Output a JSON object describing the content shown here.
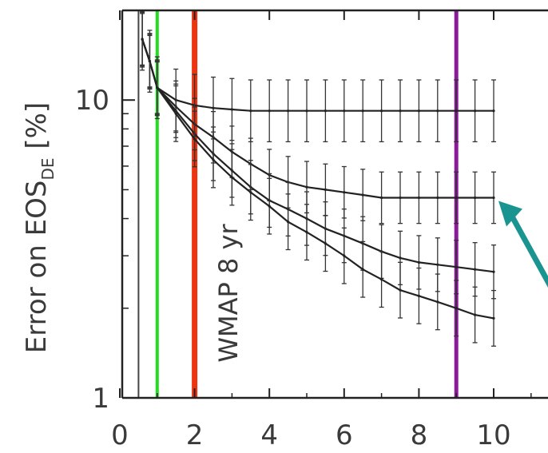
{
  "chart_data": {
    "type": "line",
    "ylabel_main": "Error on EOS",
    "ylabel_sub": "DE",
    "ylabel_unit": "[%]",
    "xlabel": "",
    "xlim": [
      0,
      11
    ],
    "ylim": [
      1,
      20
    ],
    "y_scale": "log",
    "x_ticks": [
      "0",
      "2",
      "4",
      "6",
      "8",
      "10"
    ],
    "y_ticks": [
      "1",
      "10"
    ],
    "grid": false,
    "series": [
      {
        "x": [
          0.6,
          0.8,
          1.0,
          1.5,
          2.0,
          2.5,
          3.0,
          3.5,
          4.0,
          4.5,
          5.0,
          5.5,
          6.0,
          6.5,
          7.0,
          7.5,
          8.0,
          8.5,
          9.0,
          9.5,
          10.0
        ],
        "values": [
          16,
          13.5,
          11,
          10,
          9.6,
          9.4,
          9.3,
          9.2,
          9.2,
          9.2,
          9.2,
          9.2,
          9.2,
          9.2,
          9.2,
          9.2,
          9.2,
          9.2,
          9.2,
          9.2,
          9.2
        ],
        "err_frac": 0.27
      },
      {
        "x": [
          0.6,
          0.8,
          1.0,
          1.5,
          2.0,
          2.5,
          3.0,
          3.5,
          4.0,
          4.5,
          5.0,
          5.5,
          6.0,
          6.5,
          7.0,
          7.5,
          8.0,
          8.5,
          9.0,
          9.5,
          10.0
        ],
        "values": [
          16,
          13.5,
          11,
          9.5,
          8.3,
          7.5,
          6.7,
          6.1,
          5.6,
          5.3,
          5.1,
          5.0,
          4.9,
          4.8,
          4.7,
          4.7,
          4.7,
          4.7,
          4.7,
          4.7,
          4.7
        ],
        "err_frac": 0.22
      },
      {
        "x": [
          0.6,
          0.8,
          1.0,
          1.5,
          2.0,
          2.5,
          3.0,
          3.5,
          4.0,
          4.5,
          5.0,
          5.5,
          6.0,
          6.5,
          7.0,
          7.5,
          8.0,
          8.5,
          9.0,
          9.5,
          10.0
        ],
        "values": [
          16,
          13.5,
          11,
          9.2,
          7.7,
          6.6,
          5.8,
          5.1,
          4.6,
          4.3,
          4.0,
          3.7,
          3.5,
          3.3,
          3.1,
          2.95,
          2.85,
          2.8,
          2.75,
          2.7,
          2.65
        ],
        "err_frac": 0.23
      },
      {
        "x": [
          0.6,
          0.8,
          1.0,
          1.5,
          2.0,
          2.5,
          3.0,
          3.5,
          4.0,
          4.5,
          5.0,
          5.5,
          6.0,
          6.5,
          7.0,
          7.5,
          8.0,
          8.5,
          9.0,
          9.5,
          10.0
        ],
        "values": [
          16,
          13.5,
          11,
          9.0,
          7.4,
          6.3,
          5.5,
          4.9,
          4.4,
          3.9,
          3.6,
          3.3,
          3.0,
          2.7,
          2.5,
          2.3,
          2.2,
          2.1,
          2.0,
          1.9,
          1.85
        ],
        "err_frac": 0.24
      }
    ],
    "vertical_lines": [
      {
        "x": 0.5,
        "color": "#444444",
        "width": 2
      },
      {
        "x": 1.0,
        "color": "#22dd22",
        "width": 4
      },
      {
        "x": 2.0,
        "color": "#ee3311",
        "width": 7
      },
      {
        "x": 9.0,
        "color": "#8b1a9b",
        "width": 5
      }
    ],
    "annotations": [
      {
        "text": "WMAP 8 yr",
        "color": "#ee2200",
        "rotation": -90
      }
    ],
    "arrow": {
      "color": "#1a9490",
      "to_x": 10.0,
      "to_y": 4.7
    }
  }
}
